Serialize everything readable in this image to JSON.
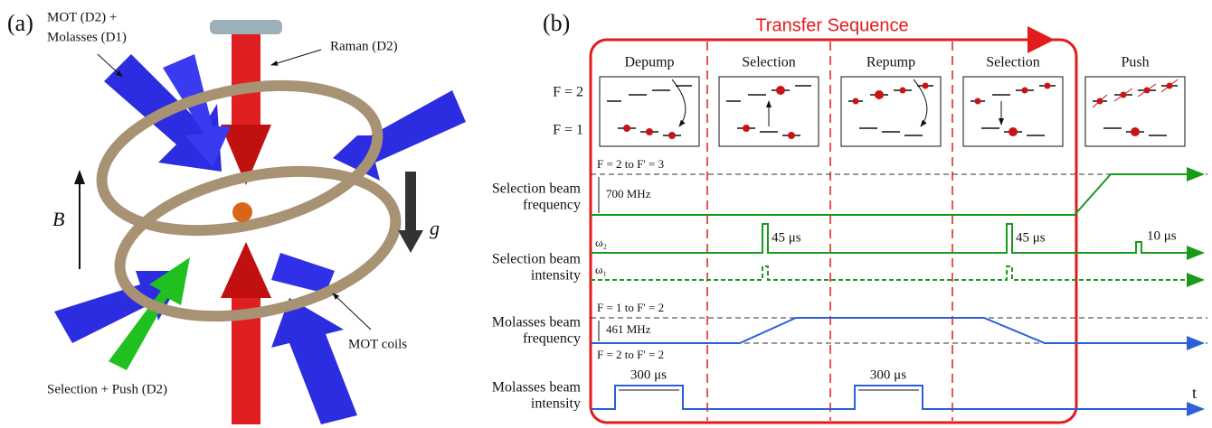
{
  "panel_a": {
    "label": "(a)",
    "mot_label_1": "MOT (D2) +",
    "mot_label_2": "Molasses (D1)",
    "raman_label": "Raman (D2)",
    "b_label": "B",
    "g_label": "g",
    "coils_label": "MOT coils",
    "selection_label": "Selection + Push (D2)"
  },
  "panel_b": {
    "label": "(b)",
    "title": "Transfer Sequence",
    "stages": [
      "Depump",
      "Selection",
      "Repump",
      "Selection",
      "Push"
    ],
    "levels": [
      "F = 2",
      "F = 1"
    ],
    "rows": [
      [
        "Selection beam",
        "frequency"
      ],
      [
        "Selection beam",
        "intensity"
      ],
      [
        "Molasses beam",
        "frequency"
      ],
      [
        "Molasses beam",
        "intensity"
      ]
    ],
    "annotations": {
      "sel_upper": "F = 2 to F' = 3",
      "sel_detuning": "700 MHz",
      "pulse_1": "45 μs",
      "pulse_2": "45 μs",
      "pulse_3": "10 μs",
      "omega_2": "ω₂",
      "omega_1": "ω₁",
      "mol_upper": "F = 1 to F' = 2",
      "mol_detuning": "461 MHz",
      "mol_lower": "F = 2 to F' = 2",
      "mol_pulse_1": "300 μs",
      "mol_pulse_2": "300 μs",
      "time": "t"
    }
  }
}
